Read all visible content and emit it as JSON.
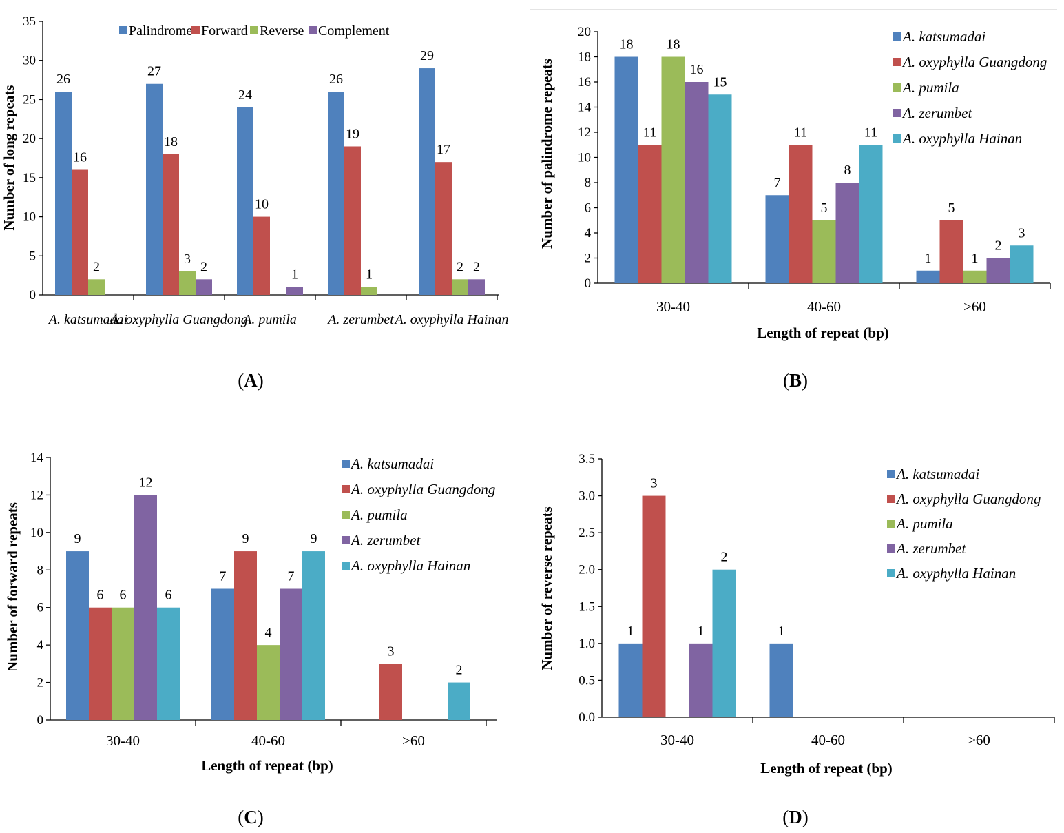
{
  "colors": {
    "blue": "#4F81BD",
    "red": "#C0504D",
    "green": "#9BBB59",
    "purple": "#8064A2",
    "cyan": "#4BACC6"
  },
  "chart_data": [
    {
      "id": "A",
      "panel_label": "A",
      "type": "bar",
      "title": "",
      "xlabel": "",
      "ylabel": "Number of long repeats",
      "ylim": [
        0,
        35
      ],
      "ytick_step": 5,
      "yticks": [
        "0",
        "5",
        "10",
        "15",
        "20",
        "25",
        "30",
        "35"
      ],
      "legend_position": "top",
      "legend_italic": false,
      "categories_italic": true,
      "categories": [
        "A. katsumadai",
        "A. oxyphylla Guangdong",
        "A. pumila",
        "A. zerumbet",
        "A. oxyphylla Hainan"
      ],
      "series": [
        {
          "name": "Palindrome",
          "color": "blue",
          "values": [
            26,
            27,
            24,
            26,
            29
          ]
        },
        {
          "name": "Forward",
          "color": "red",
          "values": [
            16,
            18,
            10,
            19,
            17
          ]
        },
        {
          "name": "Reverse",
          "color": "green",
          "values": [
            2,
            3,
            0,
            1,
            2
          ]
        },
        {
          "name": "Complement",
          "color": "purple",
          "values": [
            0,
            2,
            1,
            0,
            2
          ]
        }
      ]
    },
    {
      "id": "B",
      "panel_label": "B",
      "type": "bar",
      "title": "",
      "xlabel": "Length of repeat (bp)",
      "ylabel": "Number of palindrome repeats",
      "ylim": [
        0,
        20
      ],
      "ytick_step": 2,
      "yticks": [
        "0",
        "2",
        "4",
        "6",
        "8",
        "10",
        "12",
        "14",
        "16",
        "18",
        "20"
      ],
      "legend_position": "right",
      "legend_italic": true,
      "categories_italic": false,
      "categories": [
        "30-40",
        "40-60",
        ">60"
      ],
      "series": [
        {
          "name": "A. katsumadai",
          "color": "blue",
          "values": [
            18,
            7,
            1
          ]
        },
        {
          "name": "A. oxyphylla Guangdong",
          "color": "red",
          "values": [
            11,
            11,
            5
          ]
        },
        {
          "name": "A. pumila",
          "color": "green",
          "values": [
            18,
            5,
            1
          ]
        },
        {
          "name": "A. zerumbet",
          "color": "purple",
          "values": [
            16,
            8,
            2
          ]
        },
        {
          "name": "A. oxyphylla Hainan",
          "color": "cyan",
          "values": [
            15,
            11,
            3
          ]
        }
      ]
    },
    {
      "id": "C",
      "panel_label": "C",
      "type": "bar",
      "title": "",
      "xlabel": "Length of repeat (bp)",
      "ylabel": "Number of forward repeats",
      "ylim": [
        0,
        14
      ],
      "ytick_step": 2,
      "yticks": [
        "0",
        "2",
        "4",
        "6",
        "8",
        "10",
        "12",
        "14"
      ],
      "legend_position": "right",
      "legend_italic": true,
      "categories_italic": false,
      "categories": [
        "30-40",
        "40-60",
        ">60"
      ],
      "series": [
        {
          "name": "A. katsumadai",
          "color": "blue",
          "values": [
            9,
            7,
            0
          ]
        },
        {
          "name": "A. oxyphylla Guangdong",
          "color": "red",
          "values": [
            6,
            9,
            3
          ]
        },
        {
          "name": "A. pumila",
          "color": "green",
          "values": [
            6,
            4,
            0
          ]
        },
        {
          "name": "A. zerumbet",
          "color": "purple",
          "values": [
            12,
            7,
            0
          ]
        },
        {
          "name": "A. oxyphylla Hainan",
          "color": "cyan",
          "values": [
            6,
            9,
            2
          ]
        }
      ]
    },
    {
      "id": "D",
      "panel_label": "D",
      "type": "bar",
      "title": "",
      "xlabel": "Length of repeat (bp)",
      "ylabel": "Number of reverse repeats",
      "ylim": [
        0,
        3.5
      ],
      "ytick_step": 0.5,
      "yticks": [
        "0.0",
        "0.5",
        "1.0",
        "1.5",
        "2.0",
        "2.5",
        "3.0",
        "3.5"
      ],
      "legend_position": "right",
      "legend_italic": true,
      "categories_italic": false,
      "categories": [
        "30-40",
        "40-60",
        ">60"
      ],
      "series": [
        {
          "name": "A. katsumadai",
          "color": "blue",
          "values": [
            1,
            1,
            0
          ]
        },
        {
          "name": "A. oxyphylla Guangdong",
          "color": "red",
          "values": [
            3,
            0,
            0
          ]
        },
        {
          "name": "A. pumila",
          "color": "green",
          "values": [
            0,
            0,
            0
          ]
        },
        {
          "name": "A. zerumbet",
          "color": "purple",
          "values": [
            1,
            0,
            0
          ]
        },
        {
          "name": "A. oxyphylla Hainan",
          "color": "cyan",
          "values": [
            2,
            0,
            0
          ]
        }
      ]
    }
  ]
}
